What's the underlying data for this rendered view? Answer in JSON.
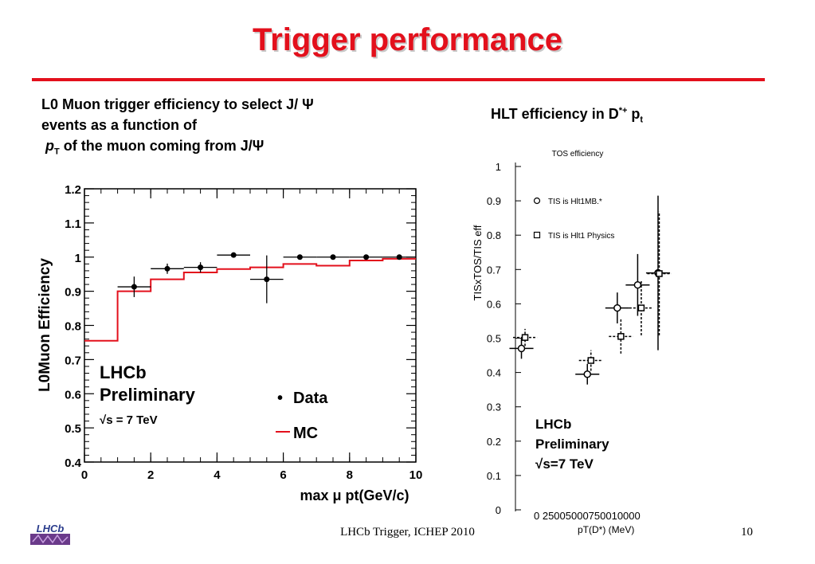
{
  "slide": {
    "title": "Trigger performance",
    "left_caption": {
      "line1": "L0 Muon trigger efficiency to select J/ Ψ",
      "line2": "events as a function of",
      "line3_p": "p",
      "line3_sub": "T",
      "line3_rest": " of the muon coming from J/Ψ"
    },
    "right_caption": {
      "main": "HLT efficiency in D",
      "sup": "*+",
      "after": " p",
      "sub": "t"
    },
    "footer": "LHCb Trigger, ICHEP 2010",
    "page_number": "10",
    "logo_text": "LHCb"
  },
  "chart_data": [
    {
      "type": "scatter",
      "ylabel": "L0Muon Efficiency",
      "xlabel": "max μ pt(GeV/c)",
      "xlim": [
        0,
        10
      ],
      "ylim": [
        0.4,
        1.2
      ],
      "x_ticks": [
        "0",
        "2",
        "4",
        "6",
        "8",
        "10"
      ],
      "y_ticks": [
        "0.4",
        "0.5",
        "0.6",
        "0.7",
        "0.8",
        "0.9",
        "1",
        "1.1",
        "1.2"
      ],
      "annotation": {
        "line1": "LHCb",
        "line2": "Preliminary",
        "line3": "√s = 7 TeV"
      },
      "legend": {
        "data": "Data",
        "mc": "MC",
        "data_marker": "•"
      },
      "series": [
        {
          "name": "Data",
          "points": [
            {
              "x": 1.5,
              "y": 0.913,
              "xerr": 0.5,
              "yerr": 0.03
            },
            {
              "x": 2.5,
              "y": 0.966,
              "xerr": 0.5,
              "yerr": 0.015
            },
            {
              "x": 3.5,
              "y": 0.97,
              "xerr": 0.5,
              "yerr": 0.015
            },
            {
              "x": 4.5,
              "y": 1.006,
              "xerr": 0.5,
              "yerr": 0.005
            },
            {
              "x": 5.5,
              "y": 0.935,
              "xerr": 0.5,
              "yerr": 0.07
            },
            {
              "x": 6.5,
              "y": 1.0,
              "xerr": 0.5,
              "yerr": 0.005
            },
            {
              "x": 7.5,
              "y": 1.0,
              "xerr": 0.5,
              "yerr": 0.004
            },
            {
              "x": 8.5,
              "y": 1.0,
              "xerr": 0.5,
              "yerr": 0.004
            },
            {
              "x": 9.5,
              "y": 1.0,
              "xerr": 0.5,
              "yerr": 0.004
            }
          ]
        },
        {
          "name": "MC",
          "type": "step",
          "color": "#e3101c",
          "edges": [
            0,
            1,
            2,
            3,
            4,
            5,
            6,
            7,
            8,
            9,
            10
          ],
          "values": [
            0.755,
            0.9,
            0.935,
            0.955,
            0.965,
            0.97,
            0.98,
            0.975,
            0.99,
            0.995
          ]
        }
      ]
    },
    {
      "type": "scatter",
      "title": "TOS efficiency",
      "ylabel": "TISxTOS/TIS eff",
      "xlabel": "pT(D*) (MeV)",
      "xlim": [
        -2500,
        10000
      ],
      "ylim": [
        0,
        1
      ],
      "x_tick_text": "0  25005000750010000",
      "y_ticks": [
        "0",
        "0.1",
        "0.2",
        "0.3",
        "0.4",
        "0.5",
        "0.6",
        "0.7",
        "0.8",
        "0.9",
        "1"
      ],
      "annotation": {
        "line1": "LHCb",
        "line2": "Preliminary",
        "line3": "√s=7 TeV"
      },
      "series": [
        {
          "name": "TIS is Hlt1MB.*",
          "marker": "circle",
          "points": [
            {
              "x": -2000,
              "y": 0.47,
              "xerr": 1000,
              "yerr": 0.03
            },
            {
              "x": 3500,
              "y": 0.395,
              "xerr": 1000,
              "yerr": 0.03
            },
            {
              "x": 6000,
              "y": 0.588,
              "xerr": 1000,
              "yerr": 0.045
            },
            {
              "x": 7700,
              "y": 0.655,
              "xerr": 1000,
              "yerr": 0.09
            },
            {
              "x": 9400,
              "y": 0.69,
              "xerr": 1000,
              "yerr": 0.225
            }
          ]
        },
        {
          "name": "TIS is Hlt1 Physics",
          "marker": "square",
          "points": [
            {
              "x": -1700,
              "y": 0.502,
              "xerr": 1000,
              "yerr": 0.025
            },
            {
              "x": 3800,
              "y": 0.435,
              "xerr": 1000,
              "yerr": 0.03
            },
            {
              "x": 6300,
              "y": 0.505,
              "xerr": 1000,
              "yerr": 0.05
            },
            {
              "x": 8000,
              "y": 0.588,
              "xerr": 1000,
              "yerr": 0.08
            },
            {
              "x": 9500,
              "y": 0.688,
              "xerr": 1000,
              "yerr": 0.18
            }
          ]
        }
      ]
    }
  ]
}
